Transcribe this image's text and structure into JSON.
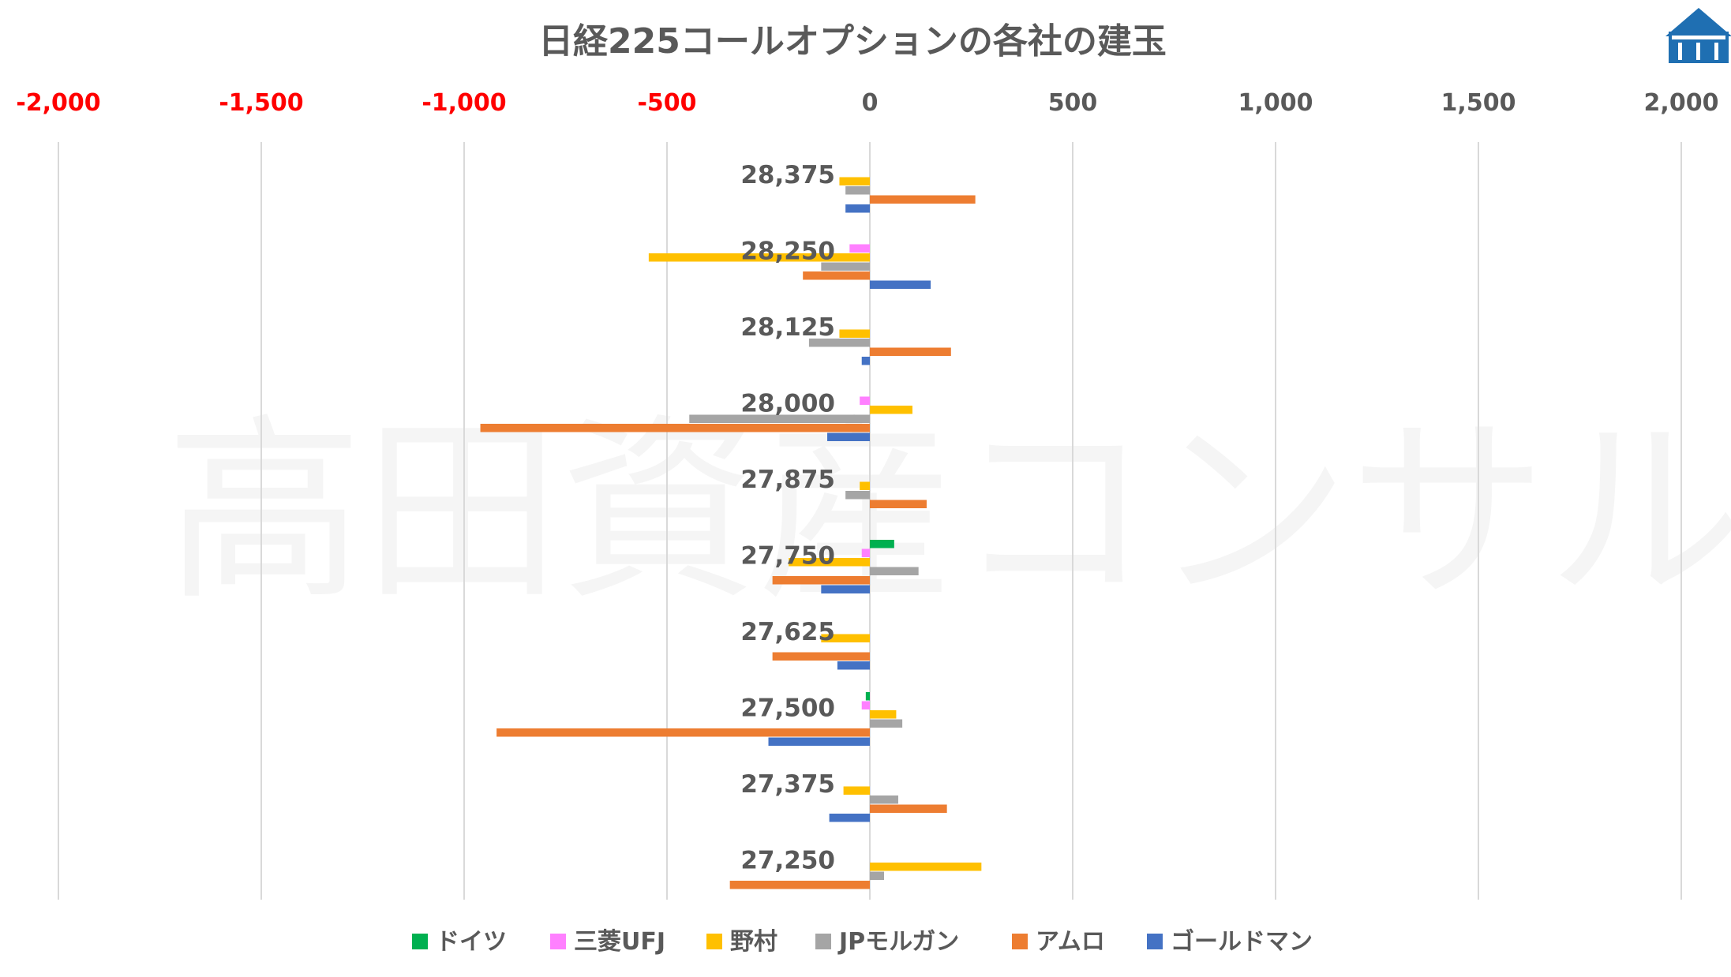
{
  "chart_data": {
    "type": "bar",
    "orientation": "horizontal",
    "title": "日経225コールオプションの各社の建玉",
    "xlim": [
      -2000,
      2000
    ],
    "x_ticks": [
      {
        "value": -2000,
        "label": "-2,000",
        "color": "#ff0000"
      },
      {
        "value": -1500,
        "label": "-1,500",
        "color": "#ff0000"
      },
      {
        "value": -1000,
        "label": "-1,000",
        "color": "#ff0000"
      },
      {
        "value": -500,
        "label": "-500",
        "color": "#ff0000"
      },
      {
        "value": 0,
        "label": "0",
        "color": "#595959"
      },
      {
        "value": 500,
        "label": "500",
        "color": "#595959"
      },
      {
        "value": 1000,
        "label": "1,000",
        "color": "#595959"
      },
      {
        "value": 1500,
        "label": "1,500",
        "color": "#595959"
      },
      {
        "value": 2000,
        "label": "2,000",
        "color": "#595959"
      }
    ],
    "grid": true,
    "legend_position": "bottom",
    "categories": [
      "28,375",
      "28,250",
      "28,125",
      "28,000",
      "27,875",
      "27,750",
      "27,625",
      "27,500",
      "27,375",
      "27,250"
    ],
    "series": [
      {
        "name": "ドイツ",
        "color": "#00b050",
        "values": [
          0,
          0,
          0,
          0,
          0,
          60,
          0,
          -10,
          0,
          0
        ]
      },
      {
        "name": "三菱UFJ",
        "color": "#ff80ff",
        "values": [
          0,
          -50,
          0,
          -25,
          0,
          -20,
          0,
          -20,
          0,
          0
        ]
      },
      {
        "name": "野村",
        "color": "#ffc000",
        "values": [
          -75,
          -545,
          -75,
          105,
          -25,
          -200,
          -120,
          65,
          -65,
          275
        ]
      },
      {
        "name": "JPモルガン",
        "color": "#a5a5a5",
        "values": [
          -60,
          -120,
          -150,
          -445,
          -60,
          120,
          0,
          80,
          70,
          35
        ]
      },
      {
        "name": "アムロ",
        "color": "#ed7d31",
        "values": [
          260,
          -165,
          200,
          -960,
          140,
          -240,
          -240,
          -920,
          190,
          -345
        ]
      },
      {
        "name": "ゴールドマン",
        "color": "#4472c4",
        "values": [
          -60,
          150,
          -20,
          -105,
          0,
          -120,
          -80,
          -250,
          -100,
          0
        ]
      }
    ]
  },
  "watermark": "高田資産コンサル",
  "logo_icon": "building-logo-icon"
}
